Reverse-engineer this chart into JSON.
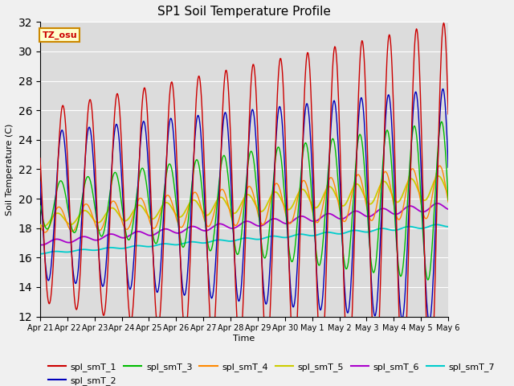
{
  "title": "SP1 Soil Temperature Profile",
  "xlabel": "Time",
  "ylabel": "Soil Temperature (C)",
  "ylim": [
    12,
    32
  ],
  "yticks": [
    12,
    14,
    16,
    18,
    20,
    22,
    24,
    26,
    28,
    30,
    32
  ],
  "background_color": "#dcdcdc",
  "fig_color": "#f0f0f0",
  "series_colors": {
    "spl_smT_1": "#cc0000",
    "spl_smT_2": "#0000bb",
    "spl_smT_3": "#00bb00",
    "spl_smT_4": "#ff8800",
    "spl_smT_5": "#cccc00",
    "spl_smT_6": "#aa00cc",
    "spl_smT_7": "#00cccc"
  },
  "tz_label": "TZ_osu",
  "tz_bg": "#ffffcc",
  "tz_border": "#cc8800",
  "tick_labels": [
    "Apr 21",
    "Apr 22",
    "Apr 23",
    "Apr 24",
    "Apr 25",
    "Apr 26",
    "Apr 27",
    "Apr 28",
    "Apr 29",
    "Apr 30",
    "May 1",
    "May 2",
    "May 3",
    "May 4",
    "May 5",
    "May 6"
  ],
  "n_days": 15
}
